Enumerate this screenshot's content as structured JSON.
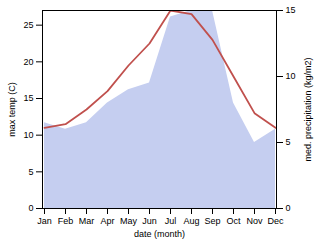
{
  "chart_data": {
    "type": "line",
    "xlabel": "date (month)",
    "ylabel": "max temp (C)",
    "y2label": "med. precipitation (kg/m2)",
    "categories": [
      "Jan",
      "Feb",
      "Mar",
      "Apr",
      "May",
      "Jun",
      "Jul",
      "Aug",
      "Sep",
      "Oct",
      "Nov",
      "Dec"
    ],
    "series": [
      {
        "type": "area",
        "axis": "y2",
        "color": "#c5cef0",
        "values": [
          6.5,
          6.0,
          6.5,
          8.0,
          9.0,
          9.5,
          14.5,
          15.0,
          15.0,
          8.0,
          5.0,
          6.0
        ]
      },
      {
        "type": "line",
        "color": "#c0504d",
        "values": [
          11.0,
          11.5,
          13.5,
          16.0,
          19.5,
          22.5,
          27.0,
          26.5,
          23.0,
          18.0,
          13.0,
          11.0
        ]
      }
    ],
    "ylim": [
      0,
      27
    ],
    "yticks": [
      0,
      5,
      10,
      15,
      20,
      25
    ],
    "y2lim": [
      0,
      15
    ],
    "y2ticks": [
      0,
      5,
      10,
      15
    ]
  }
}
